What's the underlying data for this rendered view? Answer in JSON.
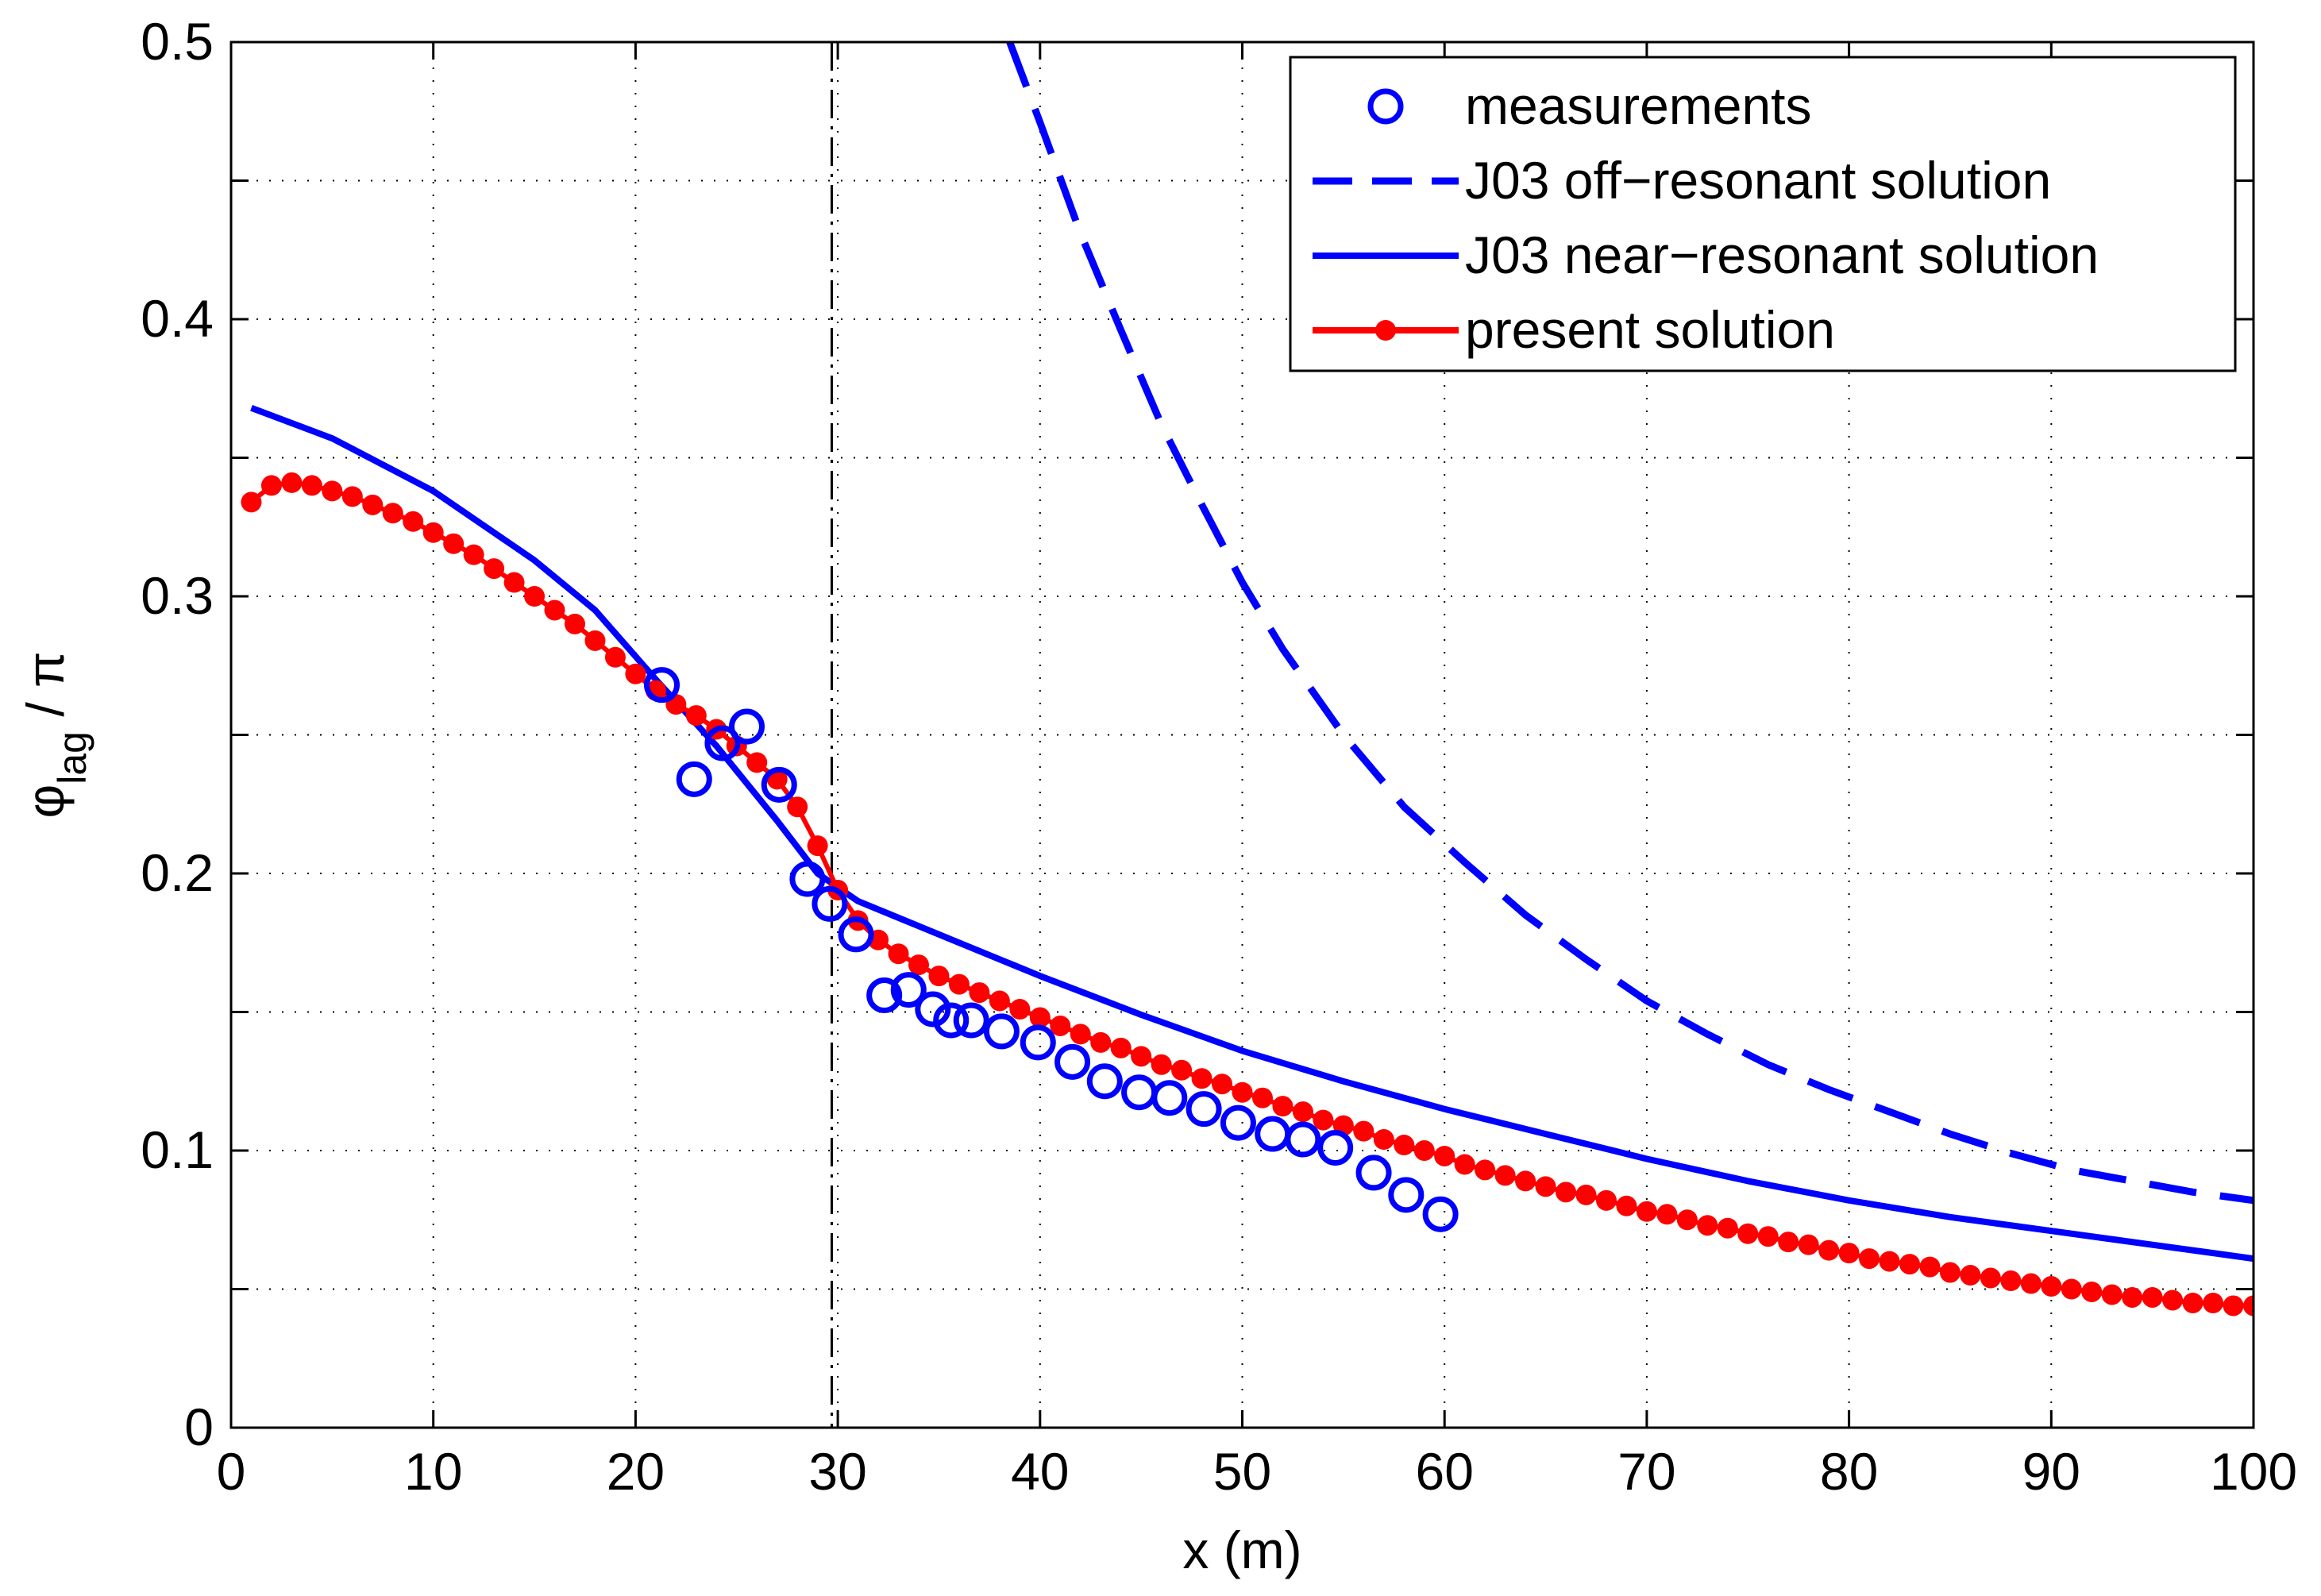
{
  "chart_data": {
    "type": "line",
    "title": "",
    "xlabel": "x (m)",
    "ylabel": {
      "main": "φ",
      "subscript": "lag",
      "suffix": " / π"
    },
    "xlim": [
      0,
      100
    ],
    "ylim": [
      0,
      0.5
    ],
    "xticks": [
      0,
      10,
      20,
      30,
      40,
      50,
      60,
      70,
      80,
      90,
      100
    ],
    "yticks": [
      0,
      0.1,
      0.2,
      0.3,
      0.4,
      0.5
    ],
    "xtick_labels": [
      "0",
      "10",
      "20",
      "30",
      "40",
      "50",
      "60",
      "70",
      "80",
      "90",
      "100"
    ],
    "ytick_labels": [
      "0",
      "0.1",
      "0.2",
      "0.3",
      "0.4",
      "0.5"
    ],
    "grid": true,
    "legend_position": "top-right",
    "reference_line_x": 29.7,
    "series": [
      {
        "name": "measurements",
        "style": "markers-circle",
        "color": "#0000ff",
        "x": [
          21.3,
          22.9,
          24.3,
          25.5,
          27.1,
          28.5,
          29.6,
          30.9,
          32.3,
          33.5,
          34.7,
          35.6,
          36.6,
          38.1,
          39.9,
          41.6,
          43.2,
          44.9,
          46.4,
          48.1,
          49.8,
          51.5,
          53.0,
          54.6,
          56.5,
          58.1,
          59.8
        ],
        "y": [
          0.268,
          0.234,
          0.247,
          0.253,
          0.232,
          0.198,
          0.189,
          0.178,
          0.156,
          0.158,
          0.151,
          0.147,
          0.147,
          0.143,
          0.139,
          0.132,
          0.125,
          0.121,
          0.119,
          0.115,
          0.11,
          0.106,
          0.104,
          0.101,
          0.092,
          0.084,
          0.077
        ]
      },
      {
        "name": "J03 off−resonant solution",
        "style": "dashed",
        "color": "#0000ff",
        "x": [
          38.5,
          40,
          42,
          44,
          46,
          48,
          50,
          52,
          55,
          58,
          61,
          64,
          67,
          70,
          73,
          76,
          79,
          82,
          85,
          88,
          91,
          94,
          97,
          100
        ],
        "y": [
          0.5,
          0.471,
          0.431,
          0.396,
          0.362,
          0.333,
          0.305,
          0.281,
          0.25,
          0.224,
          0.204,
          0.185,
          0.169,
          0.154,
          0.142,
          0.131,
          0.122,
          0.114,
          0.106,
          0.099,
          0.093,
          0.089,
          0.085,
          0.082
        ]
      },
      {
        "name": "J03 near−resonant solution",
        "style": "solid",
        "color": "#0000ff",
        "x": [
          1,
          5,
          10,
          15,
          18,
          21,
          24,
          27,
          29,
          31,
          35,
          40,
          45,
          50,
          55,
          60,
          65,
          70,
          75,
          80,
          85,
          90,
          95,
          100
        ],
        "y": [
          0.368,
          0.357,
          0.338,
          0.313,
          0.295,
          0.27,
          0.246,
          0.219,
          0.2,
          0.19,
          0.178,
          0.163,
          0.149,
          0.136,
          0.125,
          0.115,
          0.106,
          0.097,
          0.089,
          0.082,
          0.076,
          0.071,
          0.066,
          0.061
        ]
      },
      {
        "name": "present solution",
        "style": "line-dots",
        "color": "#ff0000",
        "x": [
          1,
          2,
          3,
          4,
          5,
          6,
          7,
          8,
          9,
          10,
          11,
          12,
          13,
          14,
          15,
          16,
          17,
          18,
          19,
          20,
          21,
          22,
          23,
          24,
          25,
          26,
          27,
          28,
          29,
          30,
          31,
          32,
          33,
          34,
          35,
          36,
          37,
          38,
          39,
          40,
          41,
          42,
          43,
          44,
          45,
          46,
          47,
          48,
          49,
          50,
          51,
          52,
          53,
          54,
          55,
          56,
          57,
          58,
          59,
          60,
          61,
          62,
          63,
          64,
          65,
          66,
          67,
          68,
          69,
          70,
          71,
          72,
          73,
          74,
          75,
          76,
          77,
          78,
          79,
          80,
          81,
          82,
          83,
          84,
          85,
          86,
          87,
          88,
          89,
          90,
          91,
          92,
          93,
          94,
          95,
          96,
          97,
          98,
          99,
          100
        ],
        "y": [
          0.334,
          0.34,
          0.341,
          0.34,
          0.338,
          0.336,
          0.333,
          0.33,
          0.327,
          0.323,
          0.319,
          0.315,
          0.31,
          0.305,
          0.3,
          0.295,
          0.29,
          0.284,
          0.278,
          0.272,
          0.266,
          0.261,
          0.257,
          0.252,
          0.246,
          0.24,
          0.234,
          0.224,
          0.21,
          0.194,
          0.183,
          0.176,
          0.171,
          0.167,
          0.163,
          0.16,
          0.157,
          0.154,
          0.151,
          0.148,
          0.145,
          0.142,
          0.139,
          0.137,
          0.134,
          0.131,
          0.129,
          0.126,
          0.124,
          0.121,
          0.119,
          0.116,
          0.114,
          0.111,
          0.109,
          0.107,
          0.104,
          0.102,
          0.1,
          0.098,
          0.095,
          0.093,
          0.091,
          0.089,
          0.087,
          0.085,
          0.084,
          0.082,
          0.08,
          0.078,
          0.077,
          0.075,
          0.073,
          0.072,
          0.07,
          0.069,
          0.067,
          0.066,
          0.064,
          0.063,
          0.061,
          0.06,
          0.059,
          0.058,
          0.056,
          0.055,
          0.054,
          0.053,
          0.052,
          0.051,
          0.05,
          0.049,
          0.048,
          0.047,
          0.047,
          0.046,
          0.045,
          0.045,
          0.044,
          0.044
        ]
      }
    ]
  }
}
